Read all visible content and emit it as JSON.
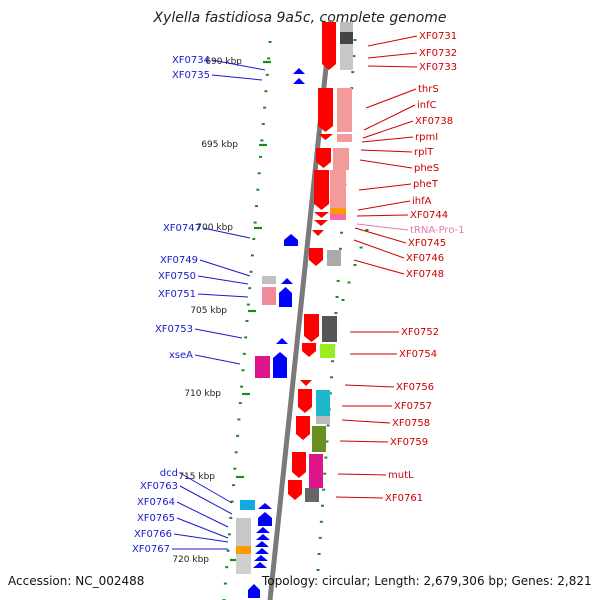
{
  "title": "Xylella fastidiosa 9a5c, complete genome",
  "accession": "Accession: NC_002488",
  "summary": "Topology: circular; Length: 2,679,306 bp; Genes: 2,821",
  "ruler_ticks": [
    "690 kbp",
    "695 kbp",
    "700 kbp",
    "705 kbp",
    "710 kbp",
    "715 kbp",
    "720 kbp"
  ],
  "left_labels": [
    "XF0734",
    "XF0735",
    "XF0747",
    "XF0749",
    "XF0750",
    "XF0751",
    "XF0753",
    "xseA",
    "dcd",
    "XF0763",
    "XF0764",
    "XF0765",
    "XF0766",
    "XF0767"
  ],
  "right_labels": [
    "XF0731",
    "XF0732",
    "XF0733",
    "thrS",
    "infC",
    "XF0738",
    "rpmI",
    "rplT",
    "pheS",
    "pheT",
    "ihfA",
    "XF0744",
    "tRNA-Pro-1",
    "XF0745",
    "XF0746",
    "XF0748",
    "XF0752",
    "XF0754",
    "XF0756",
    "XF0757",
    "XF0758",
    "XF0759",
    "mutL",
    "XF0761"
  ],
  "colors": {
    "left_label": "#1a1acc",
    "right_label": "#cc0000",
    "trna_label": "#e87aa8",
    "ruler_dots": "#1d8a1d",
    "genome_line": "#777777",
    "forward_gene": "#ff0000",
    "reverse_gene": "#0000ff"
  }
}
